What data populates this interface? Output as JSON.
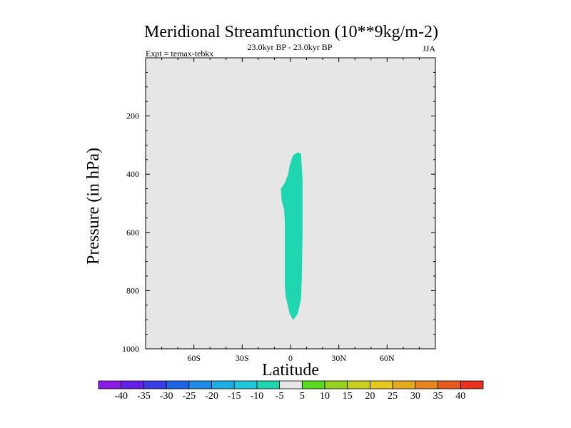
{
  "chart_data": {
    "type": "contour",
    "title": "Meridional Streamfunction (10**9kg/m-2)",
    "subtitle": "23.0kyr BP - 23.0kyr BP",
    "left_label": "Expt = temax-tebkx",
    "right_label": "JJA",
    "xlabel": "Latitude",
    "ylabel": "Pressure (in hPa)",
    "xlim": [
      -90,
      90
    ],
    "ylim": [
      1000,
      0
    ],
    "x_ticks": [
      {
        "value": -60,
        "label": "60S"
      },
      {
        "value": -30,
        "label": "30S"
      },
      {
        "value": 0,
        "label": "0"
      },
      {
        "value": 30,
        "label": "30N"
      },
      {
        "value": 60,
        "label": "60N"
      }
    ],
    "y_ticks": [
      {
        "value": 200,
        "label": "200"
      },
      {
        "value": 400,
        "label": "400"
      },
      {
        "value": 600,
        "label": "600"
      },
      {
        "value": 800,
        "label": "800"
      },
      {
        "value": 1000,
        "label": "1000"
      }
    ],
    "background_level_color": "#e6e6e6",
    "filled_region": {
      "range": "-10 to -5",
      "color": "#1ed6b0",
      "outline": [
        [
          4.5,
          325
        ],
        [
          6.5,
          330
        ],
        [
          7.5,
          420
        ],
        [
          7.5,
          600
        ],
        [
          7.0,
          760
        ],
        [
          6.5,
          830
        ],
        [
          4.5,
          880
        ],
        [
          2.5,
          895
        ],
        [
          1.5,
          900
        ],
        [
          -0.5,
          880
        ],
        [
          -3.0,
          820
        ],
        [
          -3.5,
          780
        ],
        [
          -3.5,
          560
        ],
        [
          -4.0,
          520
        ],
        [
          -5.5,
          490
        ],
        [
          -6.0,
          450
        ],
        [
          -3.5,
          430
        ],
        [
          -1.5,
          400
        ],
        [
          -0.5,
          370
        ],
        [
          1.5,
          335
        ]
      ]
    },
    "colorbar": {
      "labels": [
        "-40",
        "-35",
        "-30",
        "-25",
        "-20",
        "-15",
        "-10",
        "-5",
        "5",
        "10",
        "15",
        "20",
        "25",
        "30",
        "35",
        "40"
      ],
      "colors": [
        "#8a1ae6",
        "#6420e6",
        "#3c3ce6",
        "#1e64e6",
        "#1e8ce6",
        "#1eaee6",
        "#1ec8dc",
        "#1ed6b0",
        "#e6e6e6",
        "#5adc1e",
        "#96d21e",
        "#c8d21e",
        "#e6c81e",
        "#e6aa1e",
        "#e6841e",
        "#e65a1e",
        "#e6321e"
      ]
    }
  }
}
